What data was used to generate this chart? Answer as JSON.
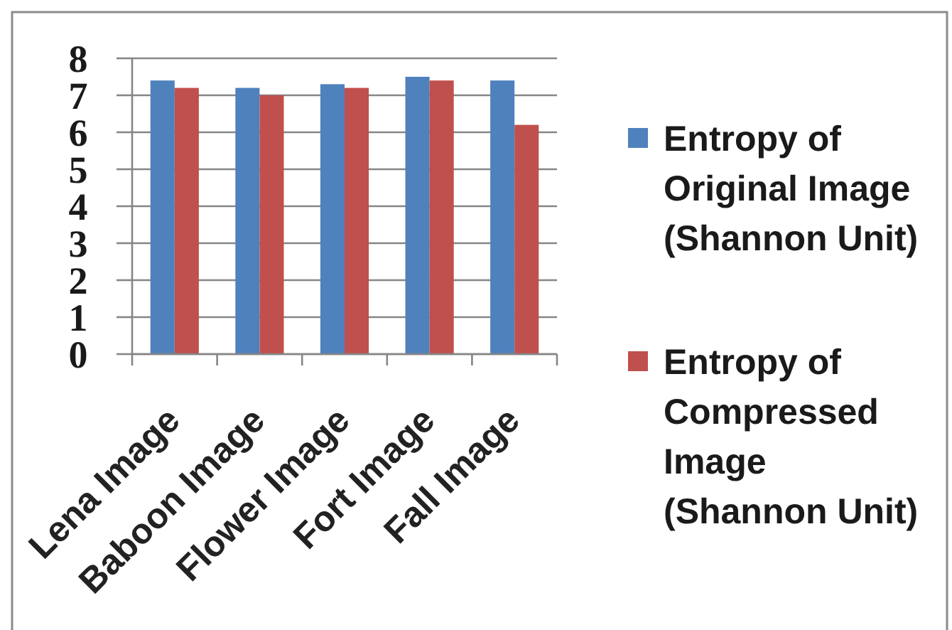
{
  "chart_data": {
    "type": "bar",
    "categories": [
      "Lena Image",
      "Baboon Image",
      "Flower Image",
      "Fort Image",
      "Fall Image"
    ],
    "series": [
      {
        "name": "Entropy of Original Image (Shannon Unit)",
        "color": "#4f81bd",
        "values": [
          7.4,
          7.2,
          7.3,
          7.5,
          7.4
        ]
      },
      {
        "name": "Entropy of Compressed Image (Shannon Unit)",
        "color": "#c0504d",
        "values": [
          7.2,
          7.0,
          7.2,
          7.4,
          6.2
        ]
      }
    ],
    "ylim": [
      0,
      8
    ],
    "yticks": [
      0,
      1,
      2,
      3,
      4,
      5,
      6,
      7,
      8
    ],
    "grid": "y",
    "legend": "right"
  }
}
